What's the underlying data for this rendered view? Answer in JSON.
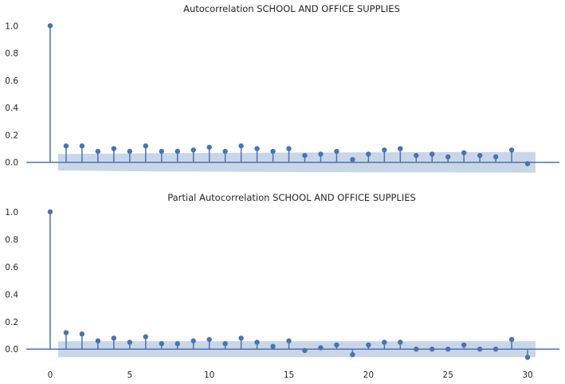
{
  "chart_data": [
    {
      "type": "stem",
      "title": "Autocorrelation SCHOOL AND OFFICE SUPPLIES",
      "xlabel": "",
      "ylabel": "",
      "xlim": [
        -1.5,
        32
      ],
      "ylim": [
        -0.06,
        1.06
      ],
      "x_ticks": [],
      "y_ticks": [
        0.0,
        0.2,
        0.4,
        0.6,
        0.8,
        1.0
      ],
      "y_tick_labels": [
        "0.0",
        "0.2",
        "0.4",
        "0.6",
        "0.8",
        "1.0"
      ],
      "lags": [
        0,
        1,
        2,
        3,
        4,
        5,
        6,
        7,
        8,
        9,
        10,
        11,
        12,
        13,
        14,
        15,
        16,
        17,
        18,
        19,
        20,
        21,
        22,
        23,
        24,
        25,
        26,
        27,
        28,
        29,
        30
      ],
      "values": [
        1.0,
        0.12,
        0.12,
        0.08,
        0.1,
        0.08,
        0.12,
        0.08,
        0.08,
        0.09,
        0.11,
        0.08,
        0.12,
        0.1,
        0.08,
        0.1,
        0.05,
        0.06,
        0.08,
        0.02,
        0.06,
        0.09,
        0.1,
        0.05,
        0.06,
        0.04,
        0.07,
        0.05,
        0.04,
        0.09,
        -0.01
      ],
      "confidence_band": {
        "lags": [
          0.5,
          1,
          2,
          3,
          4,
          5,
          6,
          7,
          8,
          9,
          10,
          11,
          12,
          13,
          14,
          15,
          16,
          17,
          18,
          19,
          20,
          21,
          22,
          23,
          24,
          25,
          26,
          27,
          28,
          29,
          30,
          30.5
        ],
        "upper": [
          0.06,
          0.06,
          0.062,
          0.063,
          0.064,
          0.065,
          0.066,
          0.067,
          0.068,
          0.068,
          0.069,
          0.069,
          0.07,
          0.07,
          0.071,
          0.071,
          0.072,
          0.072,
          0.072,
          0.073,
          0.073,
          0.073,
          0.074,
          0.074,
          0.074,
          0.074,
          0.075,
          0.075,
          0.075,
          0.075,
          0.076,
          0.076
        ],
        "lower": [
          -0.06,
          -0.06,
          -0.062,
          -0.063,
          -0.064,
          -0.065,
          -0.066,
          -0.067,
          -0.068,
          -0.068,
          -0.069,
          -0.069,
          -0.07,
          -0.07,
          -0.071,
          -0.071,
          -0.072,
          -0.072,
          -0.072,
          -0.073,
          -0.073,
          -0.073,
          -0.074,
          -0.074,
          -0.074,
          -0.074,
          -0.075,
          -0.075,
          -0.075,
          -0.075,
          -0.076,
          -0.076
        ]
      },
      "grid": false
    },
    {
      "type": "stem",
      "title": "Partial Autocorrelation SCHOOL AND OFFICE SUPPLIES",
      "xlabel": "",
      "ylabel": "",
      "xlim": [
        -1.5,
        32
      ],
      "ylim": [
        -0.08,
        1.04
      ],
      "x_ticks": [
        0,
        5,
        10,
        15,
        20,
        25,
        30
      ],
      "x_tick_labels": [
        "0",
        "5",
        "10",
        "15",
        "20",
        "25",
        "30"
      ],
      "y_ticks": [
        0.0,
        0.2,
        0.4,
        0.6,
        0.8,
        1.0
      ],
      "y_tick_labels": [
        "0.0",
        "0.2",
        "0.4",
        "0.6",
        "0.8",
        "1.0"
      ],
      "lags": [
        0,
        1,
        2,
        3,
        4,
        5,
        6,
        7,
        8,
        9,
        10,
        11,
        12,
        13,
        14,
        15,
        16,
        17,
        18,
        19,
        20,
        21,
        22,
        23,
        24,
        25,
        26,
        27,
        28,
        29,
        30
      ],
      "values": [
        1.0,
        0.12,
        0.11,
        0.06,
        0.08,
        0.05,
        0.09,
        0.04,
        0.04,
        0.06,
        0.07,
        0.04,
        0.08,
        0.05,
        0.02,
        0.06,
        -0.01,
        0.01,
        0.03,
        -0.04,
        0.03,
        0.05,
        0.05,
        0.0,
        0.0,
        0.0,
        0.03,
        0.0,
        0.0,
        0.07,
        -0.06
      ],
      "confidence_band": {
        "lags": [
          0.5,
          30.5
        ],
        "upper": [
          0.058,
          0.058
        ],
        "lower": [
          -0.058,
          -0.058
        ]
      },
      "grid": false
    }
  ],
  "colors": {
    "stem": "#4c72b0",
    "band": "#c9d6e8",
    "text": "#262626",
    "background": "#ffffff"
  }
}
